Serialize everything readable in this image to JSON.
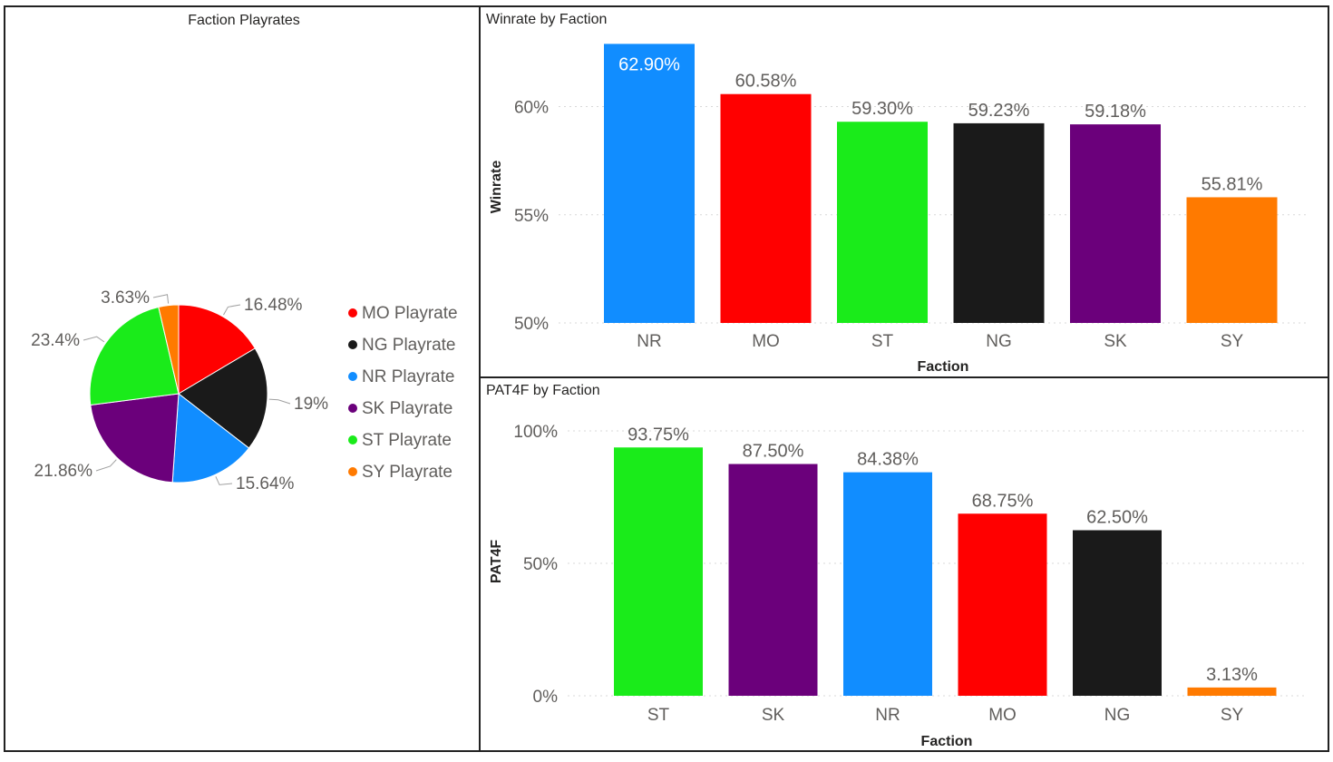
{
  "chart_data": [
    {
      "type": "pie",
      "title": "Faction Playrates",
      "labels": [
        "MO Playrate",
        "NG Playrate",
        "NR Playrate",
        "SK Playrate",
        "ST Playrate",
        "SY Playrate"
      ],
      "values": [
        16.48,
        19,
        15.64,
        21.86,
        23.4,
        3.63
      ],
      "value_labels": [
        "16.48%",
        "19%",
        "15.64%",
        "21.86%",
        "23.4%",
        "3.63%"
      ],
      "colors": [
        "#ff0000",
        "#1a1a1a",
        "#118dff",
        "#6b007b",
        "#1aeb1a",
        "#ff7a00"
      ],
      "legend_position": "right"
    },
    {
      "type": "bar",
      "title": "Winrate by Faction",
      "xlabel": "Faction",
      "ylabel": "Winrate",
      "categories": [
        "NR",
        "MO",
        "ST",
        "NG",
        "SK",
        "SY"
      ],
      "values": [
        62.9,
        60.58,
        59.3,
        59.23,
        59.18,
        55.81
      ],
      "value_labels": [
        "62.90%",
        "60.58%",
        "59.30%",
        "59.23%",
        "59.18%",
        "55.81%"
      ],
      "colors": [
        "#118dff",
        "#ff0000",
        "#1aeb1a",
        "#1a1a1a",
        "#6b007b",
        "#ff7a00"
      ],
      "ylim": [
        50,
        63
      ],
      "yticks": [
        50,
        55,
        60
      ],
      "ytick_labels": [
        "50%",
        "55%",
        "60%"
      ],
      "grid": true
    },
    {
      "type": "bar",
      "title": "PAT4F by Faction",
      "xlabel": "Faction",
      "ylabel": "PAT4F",
      "categories": [
        "ST",
        "SK",
        "NR",
        "MO",
        "NG",
        "SY"
      ],
      "values": [
        93.75,
        87.5,
        84.38,
        68.75,
        62.5,
        3.13
      ],
      "value_labels": [
        "93.75%",
        "87.50%",
        "84.38%",
        "68.75%",
        "62.50%",
        "3.13%"
      ],
      "colors": [
        "#1aeb1a",
        "#6b007b",
        "#118dff",
        "#ff0000",
        "#1a1a1a",
        "#ff7a00"
      ],
      "ylim": [
        0,
        100
      ],
      "yticks": [
        0,
        50,
        100
      ],
      "ytick_labels": [
        "0%",
        "50%",
        "100%"
      ],
      "grid": true
    }
  ]
}
